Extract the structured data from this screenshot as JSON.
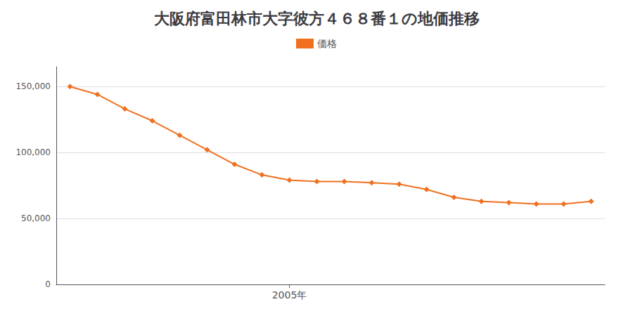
{
  "chart_data": {
    "type": "line",
    "title": "大阪府富田林市大字彼方４６８番１の地価推移",
    "x": [
      1997,
      1998,
      1999,
      2000,
      2001,
      2002,
      2003,
      2004,
      2005,
      2006,
      2007,
      2008,
      2009,
      2010,
      2011,
      2012,
      2013,
      2014,
      2015,
      2016
    ],
    "series": [
      {
        "name": "価格",
        "color": "#f07020",
        "marker": "diamond",
        "values": [
          150000,
          144000,
          133000,
          124000,
          113000,
          102000,
          91000,
          83000,
          79000,
          78000,
          78000,
          77000,
          76000,
          72000,
          66000,
          63000,
          62000,
          61000,
          61000,
          63000
        ]
      }
    ],
    "xlim": [
      1996.5,
      2016.5
    ],
    "xticks": [
      {
        "value": 2005,
        "label": "2005年"
      }
    ],
    "ylim": [
      0,
      165000
    ],
    "yticks": [
      0,
      {
        "value": 50000,
        "label": "50,000"
      },
      {
        "value": 100000,
        "label": "100,000"
      },
      {
        "value": 150000,
        "label": "150,000"
      }
    ],
    "grid": "y",
    "legend": "top"
  }
}
